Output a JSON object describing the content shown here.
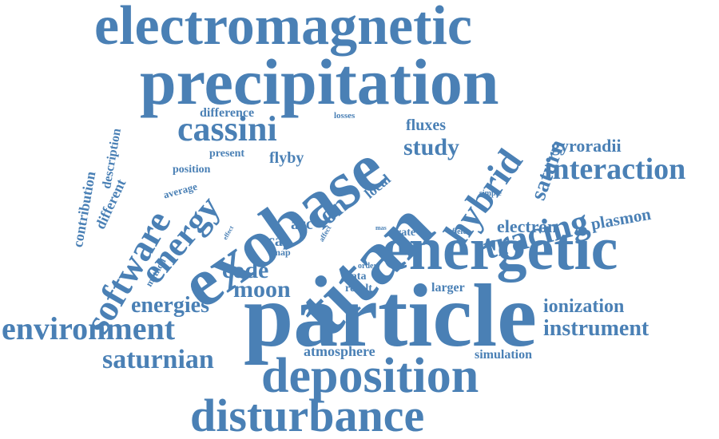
{
  "color": "#4a80b5",
  "words": [
    {
      "key": "electromagnetic",
      "text": "electromagnetic"
    },
    {
      "key": "precipitation",
      "text": "precipitation"
    },
    {
      "key": "particle",
      "text": "particle"
    },
    {
      "key": "energetic",
      "text": "energetic"
    },
    {
      "key": "exobase",
      "text": "exobase"
    },
    {
      "key": "titan",
      "text": "titan"
    },
    {
      "key": "deposition",
      "text": "deposition"
    },
    {
      "key": "disturbance",
      "text": "disturbance"
    },
    {
      "key": "environment",
      "text": "environment"
    },
    {
      "key": "software",
      "text": "software"
    },
    {
      "key": "energy",
      "text": "energy"
    },
    {
      "key": "cassini",
      "text": "cassini"
    },
    {
      "key": "hybrid",
      "text": "hybrid"
    },
    {
      "key": "tracing",
      "text": "tracing"
    },
    {
      "key": "interaction",
      "text": "interaction"
    },
    {
      "key": "study",
      "text": "study"
    },
    {
      "key": "saturn",
      "text": "saturn"
    },
    {
      "key": "saturnian",
      "text": "saturnian"
    },
    {
      "key": "instrument",
      "text": "instrument"
    },
    {
      "key": "ionization",
      "text": "ionization"
    },
    {
      "key": "code",
      "text": "code"
    },
    {
      "key": "moon",
      "text": "moon"
    },
    {
      "key": "energies",
      "text": "energies"
    },
    {
      "key": "electron",
      "text": "electron"
    },
    {
      "key": "plasmon",
      "text": "plasmon"
    },
    {
      "key": "gyroradii",
      "text": "gyroradii"
    },
    {
      "key": "atmosphere",
      "text": "atmosphere"
    },
    {
      "key": "ion",
      "text": "ion"
    },
    {
      "key": "fluxes",
      "text": "fluxes"
    },
    {
      "key": "flyby",
      "text": "flyby"
    },
    {
      "key": "difference",
      "text": "difference"
    },
    {
      "key": "contribution",
      "text": "contribution"
    },
    {
      "key": "description",
      "text": "description"
    },
    {
      "key": "different",
      "text": "different"
    },
    {
      "key": "position",
      "text": "position"
    },
    {
      "key": "average",
      "text": "average"
    },
    {
      "key": "present",
      "text": "present"
    },
    {
      "key": "local",
      "text": "local"
    },
    {
      "key": "losses",
      "text": "losses"
    },
    {
      "key": "acc",
      "text": "acc"
    },
    {
      "key": "cap",
      "text": "cap"
    },
    {
      "key": "map",
      "text": "map"
    },
    {
      "key": "rate",
      "text": "rate"
    },
    {
      "key": "data",
      "text": "data"
    },
    {
      "key": "order",
      "text": "order"
    },
    {
      "key": "result",
      "text": "result"
    },
    {
      "key": "larger",
      "text": "larger"
    },
    {
      "key": "simulation",
      "text": "simulation"
    },
    {
      "key": "simple",
      "text": "simple"
    },
    {
      "key": "field",
      "text": "field"
    },
    {
      "key": "mas",
      "text": "mas"
    },
    {
      "key": "affect",
      "text": "affect"
    },
    {
      "key": "effect",
      "text": "effect"
    },
    {
      "key": "method",
      "text": "method"
    }
  ]
}
